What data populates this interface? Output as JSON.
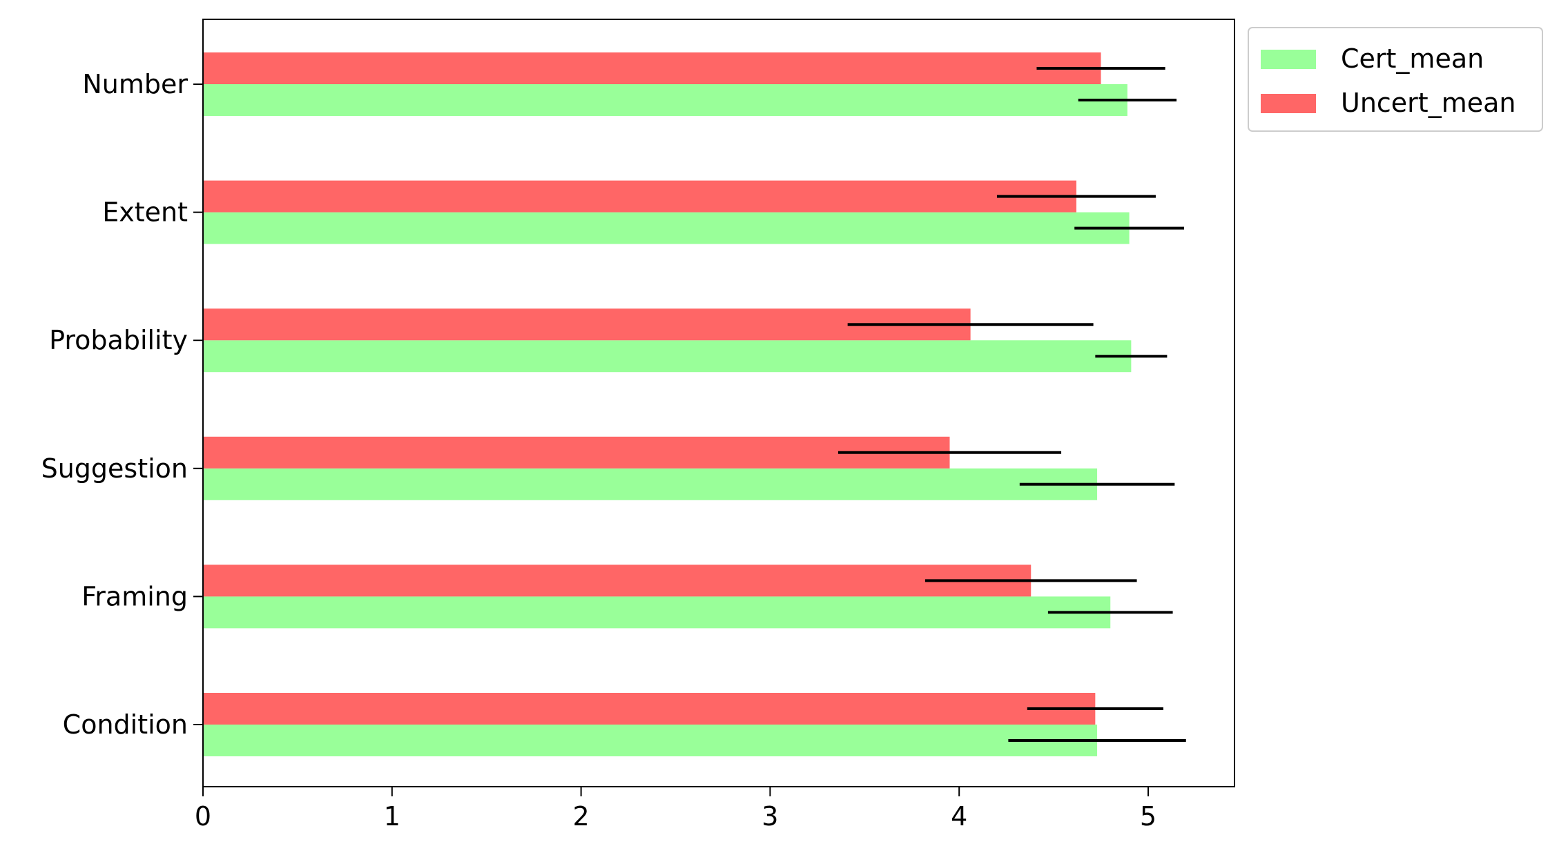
{
  "chart_data": {
    "type": "bar",
    "orientation": "horizontal",
    "categories": [
      "Number",
      "Extent",
      "Probability",
      "Suggestion",
      "Framing",
      "Condition"
    ],
    "series": [
      {
        "name": "Cert_mean",
        "color": "#99ff99",
        "values": [
          4.89,
          4.9,
          4.91,
          4.73,
          4.8,
          4.73
        ],
        "errors": [
          0.26,
          0.29,
          0.19,
          0.41,
          0.33,
          0.47
        ]
      },
      {
        "name": "Uncert_mean",
        "color": "#ff6666",
        "values": [
          4.75,
          4.62,
          4.06,
          3.95,
          4.38,
          4.72
        ],
        "errors": [
          0.34,
          0.42,
          0.65,
          0.59,
          0.56,
          0.36
        ]
      }
    ],
    "x_ticks": [
      "0",
      "1",
      "2",
      "3",
      "4",
      "5"
    ],
    "xlim": [
      0,
      5.45
    ],
    "title": "",
    "xlabel": "",
    "ylabel": "",
    "grid": false,
    "legend_placement": "outside-top-right"
  }
}
